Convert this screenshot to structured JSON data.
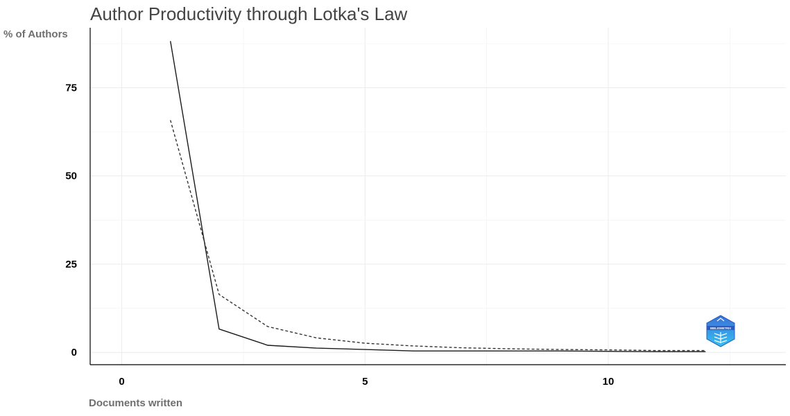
{
  "chart_data": {
    "type": "line",
    "title": "Author Productivity through Lotka's Law",
    "xlabel": "Documents written",
    "ylabel": "% of Authors",
    "xlim": [
      -0.65,
      13.65
    ],
    "ylim": [
      -3.5,
      92
    ],
    "x_ticks": [
      0,
      5,
      10
    ],
    "y_ticks": [
      0,
      25,
      50,
      75
    ],
    "grid": true,
    "legend": "none",
    "series": [
      {
        "style": "solid",
        "color": "#1a1a1a",
        "x": [
          1,
          2,
          3,
          4,
          5,
          6,
          7,
          8,
          9,
          10,
          11,
          12
        ],
        "y": [
          88.2,
          6.6,
          2.0,
          1.2,
          0.8,
          0.4,
          0.4,
          0.4,
          0.4,
          0.3,
          0.2,
          0.2
        ]
      },
      {
        "style": "dashed",
        "color": "#333333",
        "x": [
          1,
          2,
          3,
          4,
          5,
          6,
          7,
          8,
          9,
          10,
          11,
          12
        ],
        "y": [
          65.8,
          16.4,
          7.3,
          4.1,
          2.6,
          1.8,
          1.3,
          1.0,
          0.8,
          0.7,
          0.5,
          0.5
        ]
      }
    ]
  },
  "logo": {
    "text": "BIBLIOMETRIX",
    "colors": [
      "#3b6fd8",
      "#35c3f0"
    ]
  }
}
